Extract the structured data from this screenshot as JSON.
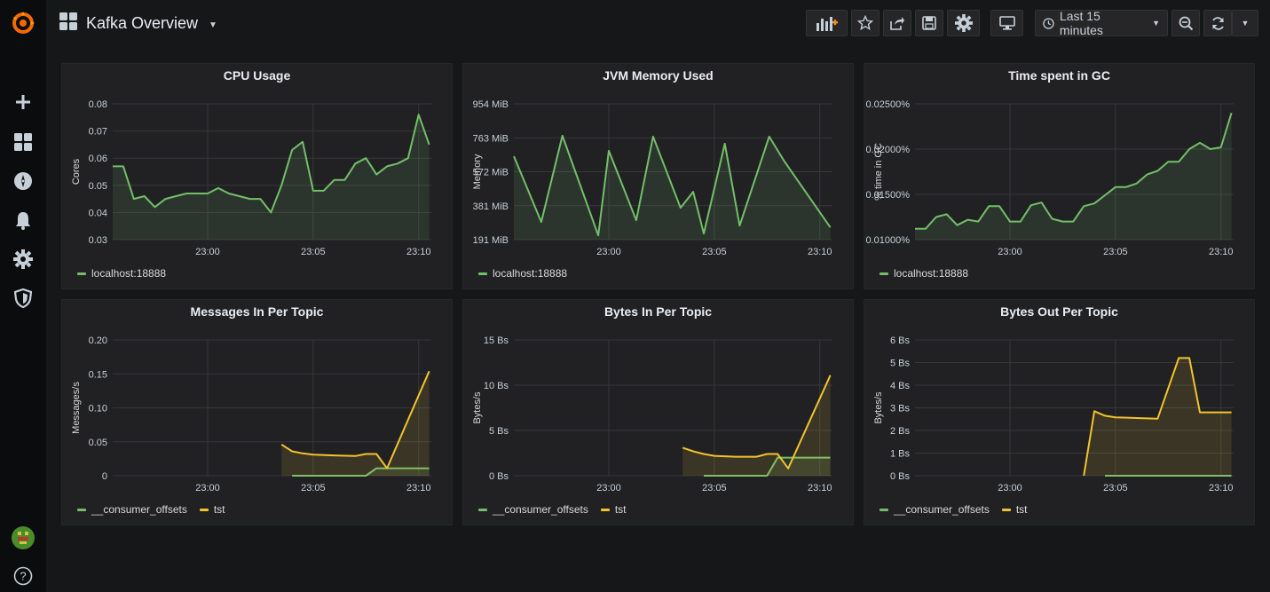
{
  "header": {
    "title": "Kafka Overview",
    "time_range": "Last 15 minutes"
  },
  "sidebar": {
    "items": [
      {
        "icon": "grafana-logo-icon"
      },
      {
        "icon": "plus-icon"
      },
      {
        "icon": "dashboards-icon"
      },
      {
        "icon": "explore-compass-icon"
      },
      {
        "icon": "alerting-bell-icon"
      },
      {
        "icon": "configuration-gear-icon"
      },
      {
        "icon": "shield-icon"
      },
      {
        "icon": "user-avatar-icon"
      },
      {
        "icon": "help-icon"
      }
    ]
  },
  "colors": {
    "green": "#73bf69",
    "yellow": "#f2c32d",
    "grid": "#38383b"
  },
  "panels": [
    {
      "title": "CPU Usage",
      "ylabel": "Cores",
      "yticks": [
        "0.08",
        "0.07",
        "0.06",
        "0.05",
        "0.04",
        "0.03"
      ],
      "xticks": [
        "23:00",
        "23:05",
        "23:10"
      ],
      "legend": [
        {
          "name": "localhost:18888",
          "color": "#73bf69"
        }
      ]
    },
    {
      "title": "JVM Memory Used",
      "ylabel": "Memory",
      "yticks": [
        "954 MiB",
        "763 MiB",
        "572 MiB",
        "381 MiB",
        "191 MiB"
      ],
      "xticks": [
        "23:00",
        "23:05",
        "23:10"
      ],
      "legend": [
        {
          "name": "localhost:18888",
          "color": "#73bf69"
        }
      ]
    },
    {
      "title": "Time spent in GC",
      "ylabel": "% time in GC",
      "yticks": [
        "0.02500%",
        "0.02000%",
        "0.01500%",
        "0.01000%"
      ],
      "xticks": [
        "23:00",
        "23:05",
        "23:10"
      ],
      "legend": [
        {
          "name": "localhost:18888",
          "color": "#73bf69"
        }
      ]
    },
    {
      "title": "Messages In Per Topic",
      "ylabel": "Messages/s",
      "yticks": [
        "0.20",
        "0.15",
        "0.10",
        "0.05",
        "0"
      ],
      "xticks": [
        "23:00",
        "23:05",
        "23:10"
      ],
      "legend": [
        {
          "name": "__consumer_offsets",
          "color": "#73bf69"
        },
        {
          "name": "tst",
          "color": "#f2c32d"
        }
      ]
    },
    {
      "title": "Bytes In Per Topic",
      "ylabel": "Bytes/s",
      "yticks": [
        "15 Bs",
        "10 Bs",
        "5 Bs",
        "0 Bs"
      ],
      "xticks": [
        "23:00",
        "23:05",
        "23:10"
      ],
      "legend": [
        {
          "name": "__consumer_offsets",
          "color": "#73bf69"
        },
        {
          "name": "tst",
          "color": "#f2c32d"
        }
      ]
    },
    {
      "title": "Bytes Out Per Topic",
      "ylabel": "Bytes/s",
      "yticks": [
        "6 Bs",
        "5 Bs",
        "4 Bs",
        "3 Bs",
        "2 Bs",
        "1 Bs",
        "0 Bs"
      ],
      "xticks": [
        "23:00",
        "23:05",
        "23:10"
      ],
      "legend": [
        {
          "name": "__consumer_offsets",
          "color": "#73bf69"
        },
        {
          "name": "tst",
          "color": "#f2c32d"
        }
      ]
    }
  ],
  "chart_data": [
    {
      "type": "area",
      "title": "CPU Usage",
      "ylabel": "Cores",
      "ylim": [
        0.03,
        0.08
      ],
      "xlim": [
        -4.5,
        10.6
      ],
      "x_unit": "minutes relative to 23:00",
      "series": [
        {
          "name": "localhost:18888",
          "color": "#73bf69",
          "x": [
            -4.5,
            -4.0,
            -3.5,
            -3.0,
            -2.5,
            -2.0,
            -1.5,
            -1.0,
            -0.5,
            0.0,
            0.5,
            1.0,
            1.5,
            2.0,
            2.5,
            3.0,
            3.5,
            4.0,
            4.5,
            5.0,
            5.5,
            6.0,
            6.5,
            7.0,
            7.5,
            8.0,
            8.5,
            9.0,
            9.5,
            10.0,
            10.5
          ],
          "y": [
            0.057,
            0.057,
            0.045,
            0.046,
            0.042,
            0.045,
            0.046,
            0.047,
            0.047,
            0.047,
            0.049,
            0.047,
            0.046,
            0.045,
            0.045,
            0.04,
            0.05,
            0.063,
            0.066,
            0.048,
            0.048,
            0.052,
            0.052,
            0.058,
            0.06,
            0.054,
            0.057,
            0.058,
            0.06,
            0.076,
            0.065
          ]
        }
      ]
    },
    {
      "type": "area",
      "title": "JVM Memory Used",
      "ylabel": "Memory",
      "ylim": [
        191,
        954
      ],
      "xlim": [
        -4.5,
        10.6
      ],
      "x_unit": "minutes relative to 23:00",
      "series": [
        {
          "name": "localhost:18888",
          "color": "#73bf69",
          "x": [
            -4.5,
            -3.2,
            -2.2,
            -0.5,
            0.0,
            1.3,
            2.1,
            3.4,
            4.0,
            4.5,
            5.5,
            6.2,
            7.6,
            8.3,
            10.5
          ],
          "y": [
            660,
            290,
            775,
            215,
            690,
            300,
            770,
            370,
            460,
            225,
            730,
            270,
            770,
            635,
            260
          ]
        }
      ]
    },
    {
      "type": "area",
      "title": "Time spent in GC",
      "ylabel": "% time in GC",
      "ylim": [
        0.01,
        0.025
      ],
      "xlim": [
        -4.5,
        10.6
      ],
      "x_unit": "minutes relative to 23:00",
      "series": [
        {
          "name": "localhost:18888",
          "color": "#73bf69",
          "x": [
            -4.5,
            -4.0,
            -3.5,
            -3.0,
            -2.5,
            -2.0,
            -1.5,
            -1.0,
            -0.5,
            0.0,
            0.5,
            1.0,
            1.5,
            2.0,
            2.5,
            3.0,
            3.5,
            4.0,
            4.5,
            5.0,
            5.5,
            6.0,
            6.5,
            7.0,
            7.5,
            8.0,
            8.5,
            9.0,
            9.5,
            10.0,
            10.5
          ],
          "y": [
            0.0112,
            0.0112,
            0.0125,
            0.0128,
            0.0116,
            0.0122,
            0.012,
            0.0137,
            0.0137,
            0.012,
            0.012,
            0.0138,
            0.0141,
            0.0123,
            0.012,
            0.012,
            0.0137,
            0.014,
            0.0149,
            0.0158,
            0.0158,
            0.0162,
            0.0172,
            0.0176,
            0.0186,
            0.0186,
            0.02,
            0.0207,
            0.02,
            0.0202,
            0.024
          ]
        }
      ]
    },
    {
      "type": "area",
      "title": "Messages In Per Topic",
      "ylabel": "Messages/s",
      "ylim": [
        0,
        0.2
      ],
      "xlim": [
        -4.5,
        10.6
      ],
      "x_unit": "minutes relative to 23:00",
      "series": [
        {
          "name": "__consumer_offsets",
          "color": "#73bf69",
          "x": [
            4.0,
            6.0,
            7.0,
            7.5,
            8.0,
            10.5
          ],
          "y": [
            0,
            0,
            0,
            0,
            0.011,
            0.011
          ]
        },
        {
          "name": "tst",
          "color": "#f2c32d",
          "x": [
            3.5,
            4.0,
            4.5,
            5.0,
            6.0,
            7.0,
            7.5,
            8.0,
            8.5,
            10.5
          ],
          "y": [
            0.046,
            0.036,
            0.033,
            0.031,
            0.03,
            0.029,
            0.032,
            0.032,
            0.011,
            0.154
          ]
        }
      ]
    },
    {
      "type": "area",
      "title": "Bytes In Per Topic",
      "ylabel": "Bytes/s",
      "ylim": [
        0,
        15
      ],
      "xlim": [
        -4.5,
        10.6
      ],
      "x_unit": "minutes relative to 23:00",
      "series": [
        {
          "name": "__consumer_offsets",
          "color": "#73bf69",
          "x": [
            4.5,
            6.0,
            7.0,
            7.5,
            8.0,
            10.5
          ],
          "y": [
            0,
            0,
            0,
            0,
            2.0,
            2.0
          ]
        },
        {
          "name": "tst",
          "color": "#f2c32d",
          "x": [
            3.5,
            4.0,
            4.5,
            5.0,
            6.0,
            7.0,
            7.5,
            8.0,
            8.5,
            10.5
          ],
          "y": [
            3.1,
            2.7,
            2.4,
            2.2,
            2.1,
            2.1,
            2.4,
            2.4,
            0.8,
            11.1
          ]
        }
      ]
    },
    {
      "type": "area",
      "title": "Bytes Out Per Topic",
      "ylabel": "Bytes/s",
      "ylim": [
        0,
        6
      ],
      "xlim": [
        -4.5,
        10.6
      ],
      "x_unit": "minutes relative to 23:00",
      "series": [
        {
          "name": "__consumer_offsets",
          "color": "#73bf69",
          "x": [
            4.5,
            6.0,
            8.0,
            10.5
          ],
          "y": [
            0,
            0,
            0,
            0
          ]
        },
        {
          "name": "tst",
          "color": "#f2c32d",
          "x": [
            3.5,
            4.0,
            4.5,
            5.0,
            6.0,
            7.0,
            8.0,
            8.5,
            9.0,
            10.5
          ],
          "y": [
            0,
            2.85,
            2.65,
            2.58,
            2.55,
            2.52,
            5.2,
            5.2,
            2.8,
            2.8
          ]
        }
      ]
    }
  ]
}
